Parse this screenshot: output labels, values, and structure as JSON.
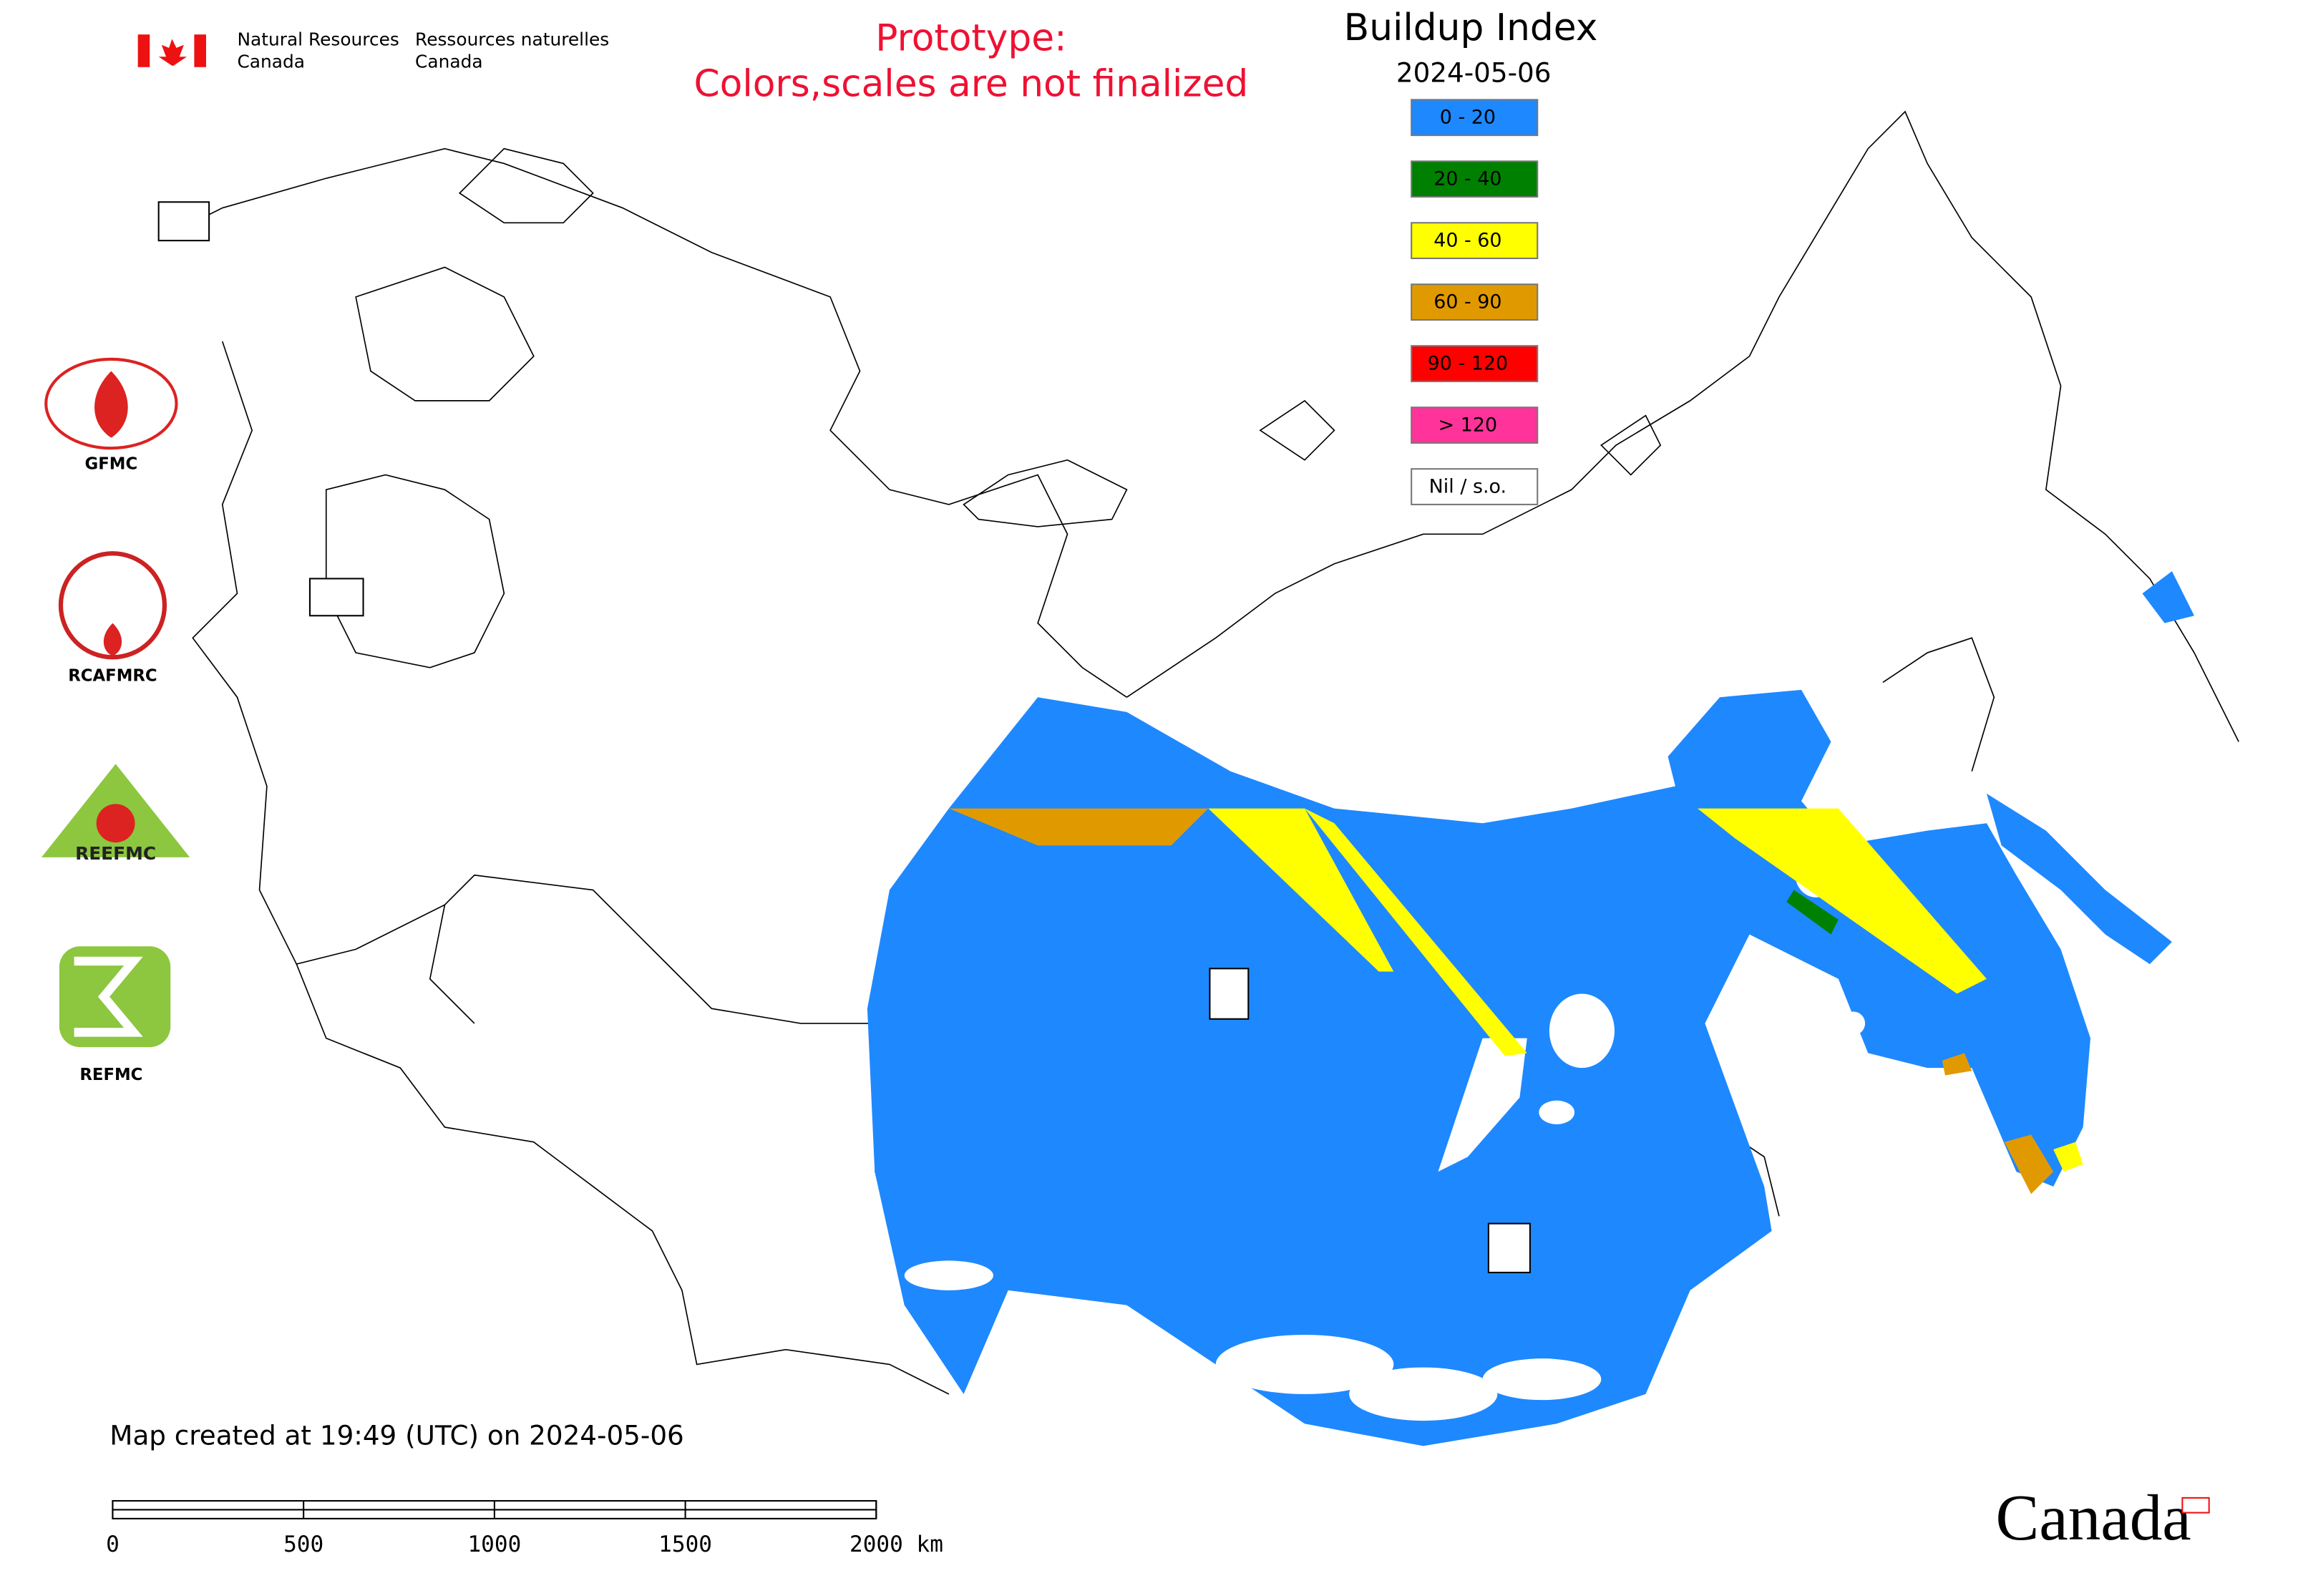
{
  "header": {
    "department_en": [
      "Natural Resources",
      "Canada"
    ],
    "department_fr": [
      "Ressources naturelles",
      "Canada"
    ],
    "wordmark": "Canada"
  },
  "notice": [
    "Prototype:",
    "Colors,scales are not finalized"
  ],
  "legend": {
    "title": "Buildup Index",
    "date": "2024-05-06",
    "items": [
      {
        "label": "0 - 20",
        "color": "#1e88ff"
      },
      {
        "label": "20 - 40",
        "color": "#008000"
      },
      {
        "label": "40 - 60",
        "color": "#ffff00"
      },
      {
        "label": "60 - 90",
        "color": "#e09a00"
      },
      {
        "label": "90 - 120",
        "color": "#ff0000"
      },
      {
        "label": "> 120",
        "color": "#ff3399"
      },
      {
        "label": "Nil / s.o.",
        "color": "#ffffff"
      }
    ]
  },
  "logos": [
    "GFMC",
    "RCAFMRC",
    "REEFMC",
    "REFMC"
  ],
  "footer": {
    "created": "Map created at 19:49 (UTC) on 2024-05-06",
    "scale_labels": [
      "0",
      "500",
      "1000",
      "1500",
      "2000 km"
    ]
  }
}
